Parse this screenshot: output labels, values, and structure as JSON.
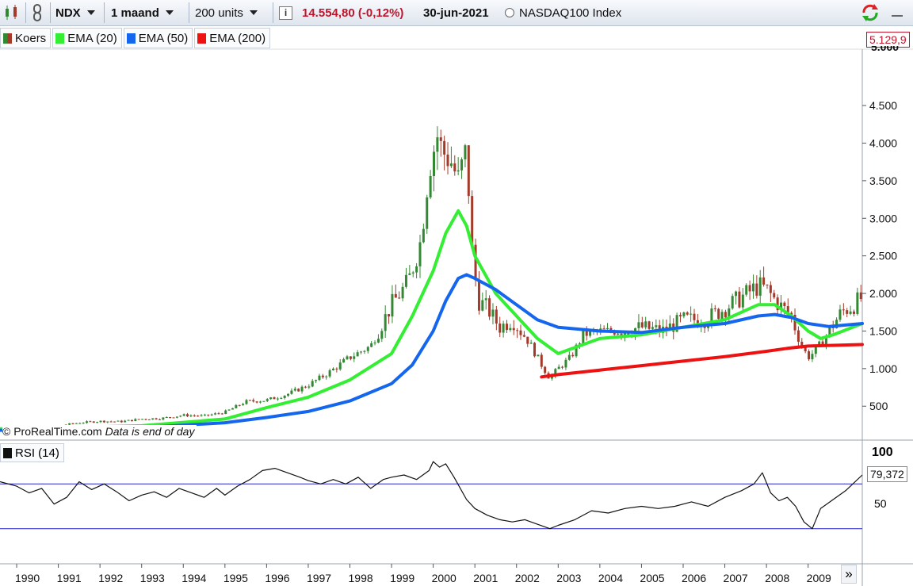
{
  "toolbar": {
    "symbol": "NDX",
    "period": "1 maand",
    "units": "200 units",
    "info_icon": "info-icon",
    "price_change": "14.554,80 (-0,12%)",
    "date": "30-jun-2021",
    "instrument": "NASDAQ100 Index",
    "price_color": "#c0142b"
  },
  "legend": {
    "price": "Koers",
    "ema20": "EMA (20)",
    "ema50": "EMA (50)",
    "ema200": "EMA (200)"
  },
  "axis": {
    "price_marker": "5.129,9",
    "top_partial": "5.000",
    "rsi_100": "100",
    "rsi_value": "79,372",
    "rsi_50": "50"
  },
  "copyright": {
    "source": "© ProRealTime.com",
    "note": "Data is end of day"
  },
  "rsi_panel": {
    "label": "RSI (14)",
    "levels": [
      30,
      70
    ]
  },
  "nav": {
    "next": "»"
  },
  "colors": {
    "ema20": "#33ee33",
    "ema50": "#1466ee",
    "ema200": "#ee1111",
    "candle_up": "#338833",
    "candle_down": "#a33a2a",
    "rsi": "#111111",
    "rsi_levels": "#2222cc"
  },
  "chart_data": {
    "type": "line",
    "title": "NASDAQ100 Index",
    "x_unit": "year",
    "xlim": [
      1989.6,
      2010.3
    ],
    "ylim": [
      70,
      5250
    ],
    "y_ticks": [
      500,
      1000,
      1500,
      2000,
      2500,
      3000,
      3500,
      4000,
      4500
    ],
    "y_tick_labels": [
      "500",
      "1.000",
      "1.500",
      "2.000",
      "2.500",
      "3.000",
      "3.500",
      "4.000",
      "4.500"
    ],
    "x_ticks": [
      1990,
      1991,
      1992,
      1993,
      1994,
      1995,
      1996,
      1997,
      1998,
      1999,
      2000,
      2001,
      2002,
      2003,
      2004,
      2005,
      2006,
      2007,
      2008,
      2009
    ],
    "x_tick_labels": [
      "1990",
      "1991",
      "1992",
      "1993",
      "1994",
      "1995",
      "1996",
      "1997",
      "1998",
      "1999",
      "2000",
      "2001",
      "2002",
      "2003",
      "2004",
      "2005",
      "2006",
      "2007",
      "2008",
      "2009"
    ],
    "series": [
      {
        "name": "Koers",
        "kind": "candlestick",
        "x": [
          1989.6,
          1990.0,
          1990.5,
          1991.0,
          1991.5,
          1992.0,
          1992.5,
          1993.0,
          1993.5,
          1994.0,
          1994.5,
          1995.0,
          1995.5,
          1996.0,
          1996.5,
          1997.0,
          1997.5,
          1998.0,
          1998.5,
          1999.0,
          1999.4,
          1999.7,
          1999.9,
          2000.1,
          2000.2,
          2000.4,
          2000.6,
          2000.8,
          2000.95,
          2001.1,
          2001.3,
          2001.6,
          2001.9,
          2002.1,
          2002.3,
          2002.6,
          2002.8,
          2003.0,
          2003.3,
          2003.6,
          2004.0,
          2004.5,
          2005.0,
          2005.5,
          2006.0,
          2006.5,
          2007.0,
          2007.4,
          2007.8,
          2008.0,
          2008.3,
          2008.6,
          2008.8,
          2009.0,
          2009.2,
          2009.5,
          2009.8,
          2010.1,
          2010.3
        ],
        "close": [
          200,
          200,
          210,
          240,
          280,
          300,
          295,
          330,
          340,
          380,
          370,
          420,
          560,
          580,
          660,
          780,
          950,
          1150,
          1300,
          1850,
          2150,
          2700,
          3700,
          4100,
          3900,
          3800,
          3500,
          3900,
          2400,
          1900,
          1800,
          1550,
          1650,
          1500,
          1350,
          1050,
          870,
          1000,
          1150,
          1450,
          1500,
          1500,
          1550,
          1500,
          1650,
          1650,
          1800,
          1950,
          2100,
          2050,
          1850,
          1700,
          1350,
          1150,
          1250,
          1500,
          1750,
          1850,
          1950
        ]
      },
      {
        "name": "EMA (20)",
        "x": [
          1989.6,
          1991,
          1993,
          1995,
          1996,
          1997,
          1998,
          1999,
          1999.5,
          2000.0,
          2000.3,
          2000.6,
          2000.8,
          2001.0,
          2001.5,
          2002.0,
          2002.5,
          2003.0,
          2003.5,
          2004.0,
          2005.0,
          2006.0,
          2007.0,
          2007.8,
          2008.2,
          2008.6,
          2009.0,
          2009.3,
          2009.6,
          2010.3
        ],
        "values": [
          200,
          215,
          240,
          330,
          480,
          620,
          850,
          1200,
          1700,
          2300,
          2800,
          3100,
          2900,
          2500,
          2000,
          1700,
          1400,
          1200,
          1300,
          1400,
          1450,
          1550,
          1650,
          1850,
          1850,
          1700,
          1500,
          1400,
          1450,
          1600
        ]
      },
      {
        "name": "EMA (50)",
        "x": [
          1989.6,
          1991,
          1993,
          1995,
          1996,
          1997,
          1998,
          1999,
          1999.5,
          2000.0,
          2000.3,
          2000.6,
          2000.8,
          2001.0,
          2001.5,
          2002.0,
          2002.5,
          2003.0,
          2004.0,
          2005.0,
          2006.0,
          2007.0,
          2007.8,
          2008.2,
          2008.6,
          2009.0,
          2009.5,
          2010.3
        ],
        "values": [
          180,
          190,
          215,
          280,
          350,
          430,
          570,
          800,
          1050,
          1500,
          1900,
          2200,
          2250,
          2200,
          2050,
          1850,
          1650,
          1550,
          1500,
          1480,
          1550,
          1600,
          1700,
          1720,
          1680,
          1600,
          1560,
          1600
        ]
      },
      {
        "name": "EMA (200)",
        "x": [
          2002.6,
          2003.0,
          2004.0,
          2005.0,
          2006.0,
          2007.0,
          2008.0,
          2008.5,
          2009.0,
          2010.3
        ],
        "values": [
          890,
          920,
          980,
          1040,
          1100,
          1160,
          1230,
          1270,
          1300,
          1320
        ]
      }
    ],
    "rsi": {
      "name": "RSI (14)",
      "ylim": [
        0,
        100
      ],
      "levels": [
        30,
        70
      ],
      "last_value": 79.372,
      "x": [
        1989.6,
        1990.0,
        1990.3,
        1990.6,
        1990.9,
        1991.2,
        1991.5,
        1991.8,
        1992.1,
        1992.4,
        1992.7,
        1993.0,
        1993.3,
        1993.6,
        1993.9,
        1994.2,
        1994.5,
        1994.8,
        1995.0,
        1995.3,
        1995.6,
        1995.9,
        1996.2,
        1996.5,
        1996.8,
        1997.0,
        1997.3,
        1997.6,
        1997.9,
        1998.2,
        1998.5,
        1998.8,
        1999.0,
        1999.3,
        1999.6,
        1999.9,
        2000.0,
        2000.15,
        2000.3,
        2000.5,
        2000.8,
        2001.0,
        2001.3,
        2001.6,
        2001.9,
        2002.2,
        2002.5,
        2002.8,
        2003.0,
        2003.4,
        2003.8,
        2004.2,
        2004.6,
        2005.0,
        2005.4,
        2005.8,
        2006.2,
        2006.6,
        2007.0,
        2007.4,
        2007.7,
        2007.9,
        2008.1,
        2008.3,
        2008.5,
        2008.7,
        2008.9,
        2009.1,
        2009.3,
        2009.6,
        2009.9,
        2010.3
      ],
      "values": [
        72,
        68,
        62,
        66,
        52,
        58,
        72,
        65,
        70,
        63,
        55,
        60,
        63,
        58,
        66,
        62,
        58,
        66,
        60,
        68,
        74,
        82,
        84,
        80,
        76,
        73,
        70,
        74,
        70,
        76,
        66,
        74,
        76,
        78,
        74,
        82,
        90,
        85,
        88,
        76,
        56,
        48,
        42,
        38,
        36,
        38,
        34,
        30,
        33,
        38,
        46,
        44,
        48,
        50,
        48,
        50,
        54,
        50,
        58,
        64,
        70,
        80,
        62,
        55,
        58,
        50,
        36,
        30,
        48,
        56,
        64,
        78
      ]
    }
  }
}
